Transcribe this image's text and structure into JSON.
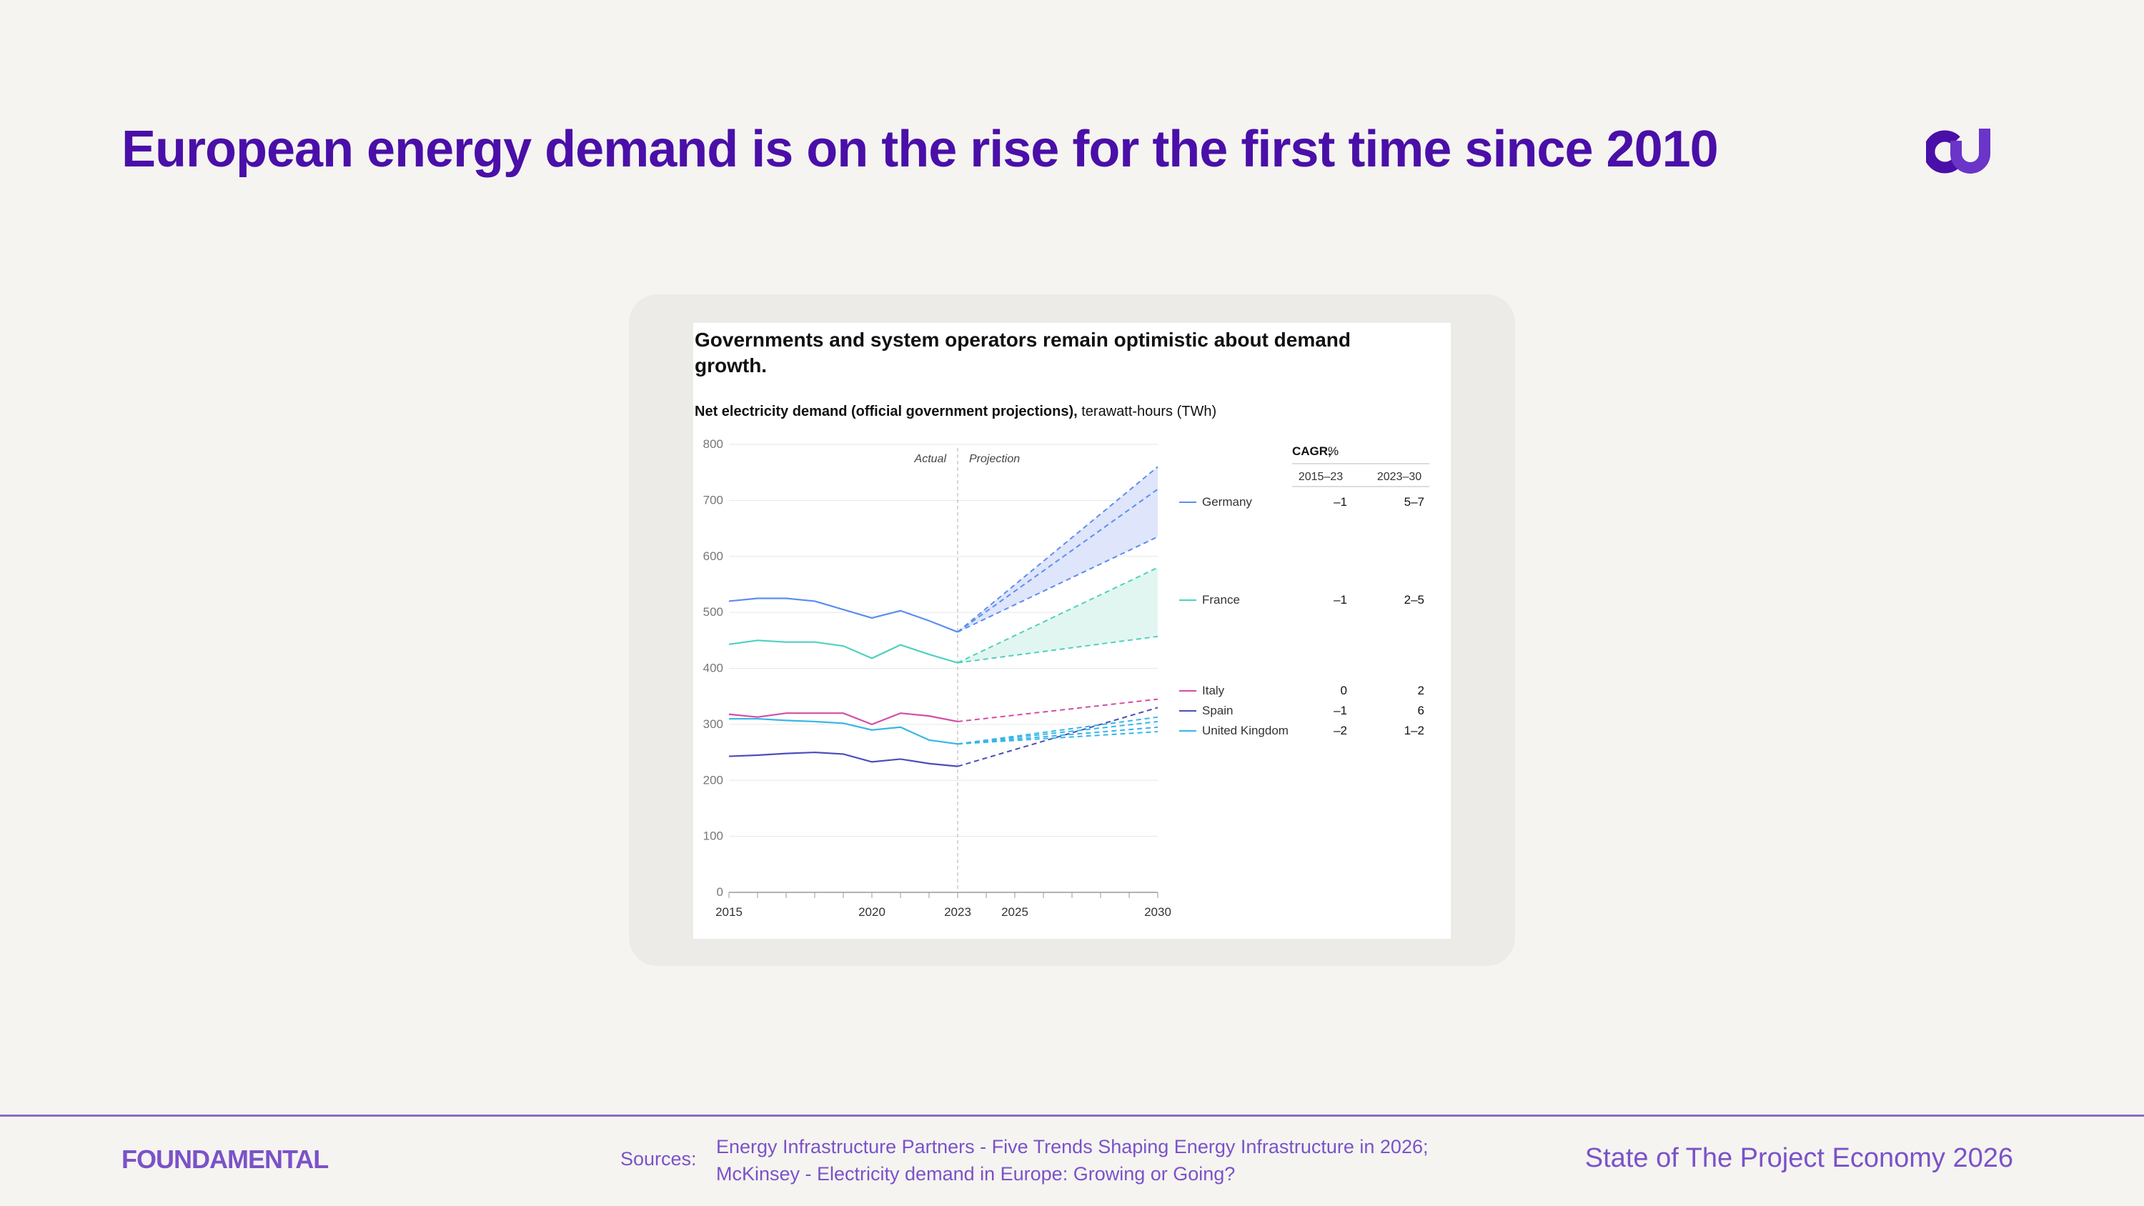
{
  "slide": {
    "title": "European energy demand is on the rise for the first time since 2010",
    "accent_color": "#4a0fa8"
  },
  "chart_data": {
    "type": "line",
    "title": "Governments and system operators remain optimistic about demand growth.",
    "subtitle_bold": "Net electricity demand (official government projections),",
    "subtitle_unit": " terawatt-hours (TWh)",
    "x": [
      2015,
      2016,
      2017,
      2018,
      2019,
      2020,
      2021,
      2022,
      2023
    ],
    "xticks": [
      2015,
      2020,
      2023,
      2025,
      2030
    ],
    "xlim": [
      2015,
      2030
    ],
    "ylim": [
      0,
      800
    ],
    "yticks": [
      0,
      100,
      200,
      300,
      400,
      500,
      600,
      700,
      800
    ],
    "grid": true,
    "divider_x": 2023,
    "actual_label": "Actual",
    "projection_label": "Projection",
    "series": [
      {
        "name": "Germany",
        "color": "#5b8ef0",
        "values": [
          520,
          525,
          525,
          520,
          505,
          490,
          503,
          485,
          465
        ],
        "projection_2030": [
          635,
          720,
          760
        ],
        "shade": "#dfe5fb"
      },
      {
        "name": "France",
        "color": "#4fd1bf",
        "values": [
          443,
          450,
          447,
          447,
          440,
          418,
          442,
          425,
          410
        ],
        "projection_2030": [
          457,
          580
        ],
        "shade": "#e2f6f1"
      },
      {
        "name": "Italy",
        "color": "#d44ca6",
        "values": [
          318,
          313,
          320,
          320,
          320,
          300,
          320,
          315,
          305
        ],
        "projection_2030": [
          345
        ]
      },
      {
        "name": "Spain",
        "color": "#4a4fb8",
        "values": [
          243,
          245,
          248,
          250,
          247,
          233,
          238,
          230,
          225
        ],
        "projection_2030": [
          330
        ]
      },
      {
        "name": "United Kingdom",
        "color": "#35b6e8",
        "values": [
          310,
          310,
          307,
          305,
          302,
          290,
          295,
          272,
          265
        ],
        "projection_2030": [
          287,
          295,
          305,
          313
        ]
      }
    ],
    "cagr_table": {
      "header": "CAGR,",
      "unit": " %",
      "col1": "2015–23",
      "col2": "2023–30",
      "rows": [
        {
          "name": "Germany",
          "c1": "–1",
          "c2": "5–7"
        },
        {
          "name": "France",
          "c1": "–1",
          "c2": "2–5"
        },
        {
          "name": "Italy",
          "c1": "0",
          "c2": "2"
        },
        {
          "name": "Spain",
          "c1": "–1",
          "c2": "6"
        },
        {
          "name": "United Kingdom",
          "c1": "–2",
          "c2": "1–2"
        }
      ]
    }
  },
  "footer": {
    "logo": "FOUNDAMENTAL",
    "sources_label": "Sources:",
    "source_1": "Energy Infrastructure Partners - Five Trends Shaping Energy Infrastructure in 2026;",
    "source_2": "McKinsey - Electricity demand in Europe: Growing or Going?",
    "report_name": "State of The Project Economy 2026",
    "color": "#7b52c9"
  }
}
